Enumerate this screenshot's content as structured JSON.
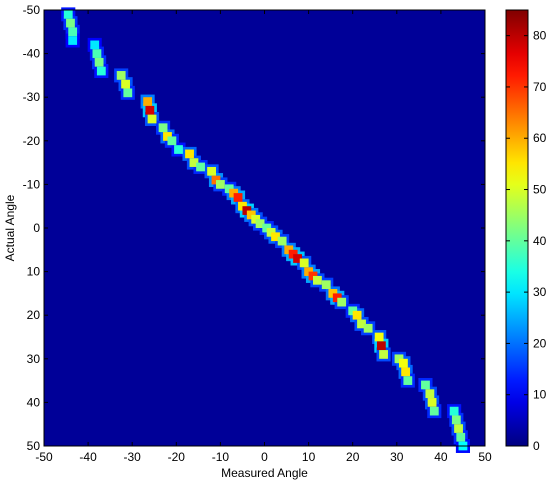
{
  "chart_data": {
    "type": "heatmap",
    "xlabel": "Measured Angle",
    "ylabel": "Actual Angle",
    "xlim": [
      -50,
      50
    ],
    "ylim": [
      -50,
      50
    ],
    "y_direction": "reversed (top = -50, bottom = 50)",
    "x_ticks": [
      -50,
      -40,
      -30,
      -20,
      -10,
      0,
      10,
      20,
      30,
      40,
      50
    ],
    "y_ticks": [
      -50,
      -40,
      -30,
      -20,
      -10,
      0,
      10,
      20,
      30,
      40,
      50
    ],
    "colorbar": {
      "colormap": "jet",
      "min": 0,
      "max": 85,
      "ticks": [
        0,
        10,
        20,
        30,
        40,
        50,
        60,
        70,
        80
      ]
    },
    "background_value": 2,
    "hotspots": [
      {
        "x": -44.5,
        "y": -49,
        "value": 35
      },
      {
        "x": -44,
        "y": -47,
        "value": 42
      },
      {
        "x": -43.5,
        "y": -45,
        "value": 38
      },
      {
        "x": -43.5,
        "y": -43,
        "value": 30
      },
      {
        "x": -38.5,
        "y": -42,
        "value": 30
      },
      {
        "x": -38,
        "y": -40,
        "value": 38
      },
      {
        "x": -37.5,
        "y": -38,
        "value": 42
      },
      {
        "x": -37,
        "y": -36,
        "value": 35
      },
      {
        "x": -32.5,
        "y": -35,
        "value": 45
      },
      {
        "x": -31.5,
        "y": -33,
        "value": 50
      },
      {
        "x": -31,
        "y": -31,
        "value": 40
      },
      {
        "x": -26.5,
        "y": -29,
        "value": 60
      },
      {
        "x": -26,
        "y": -27,
        "value": 78
      },
      {
        "x": -25.5,
        "y": -25,
        "value": 50
      },
      {
        "x": -23,
        "y": -23,
        "value": 42
      },
      {
        "x": -22,
        "y": -21,
        "value": 55
      },
      {
        "x": -21,
        "y": -20,
        "value": 40
      },
      {
        "x": -19.5,
        "y": -18,
        "value": 35
      },
      {
        "x": -17,
        "y": -17,
        "value": 55
      },
      {
        "x": -16,
        "y": -15,
        "value": 48
      },
      {
        "x": -14.5,
        "y": -14,
        "value": 40
      },
      {
        "x": -12,
        "y": -13,
        "value": 50
      },
      {
        "x": -11,
        "y": -11,
        "value": 65
      },
      {
        "x": -10,
        "y": -10,
        "value": 45
      },
      {
        "x": -8,
        "y": -9,
        "value": 40
      },
      {
        "x": -7,
        "y": -8,
        "value": 60
      },
      {
        "x": -6,
        "y": -7,
        "value": 72
      },
      {
        "x": -5,
        "y": -5,
        "value": 55
      },
      {
        "x": -4,
        "y": -4,
        "value": 80
      },
      {
        "x": -3,
        "y": -3,
        "value": 58
      },
      {
        "x": -2,
        "y": -2,
        "value": 50
      },
      {
        "x": -1,
        "y": -1,
        "value": 45
      },
      {
        "x": 0.5,
        "y": 0,
        "value": 40
      },
      {
        "x": 1.5,
        "y": 1,
        "value": 48
      },
      {
        "x": 2.5,
        "y": 2,
        "value": 55
      },
      {
        "x": 4,
        "y": 3,
        "value": 45
      },
      {
        "x": 5.5,
        "y": 5,
        "value": 60
      },
      {
        "x": 6.5,
        "y": 6,
        "value": 72
      },
      {
        "x": 7.5,
        "y": 7,
        "value": 78
      },
      {
        "x": 9,
        "y": 8,
        "value": 50
      },
      {
        "x": 10,
        "y": 10,
        "value": 60
      },
      {
        "x": 11,
        "y": 11,
        "value": 70
      },
      {
        "x": 12,
        "y": 12,
        "value": 48
      },
      {
        "x": 14,
        "y": 13,
        "value": 45
      },
      {
        "x": 15.5,
        "y": 15,
        "value": 58
      },
      {
        "x": 16.5,
        "y": 16,
        "value": 72
      },
      {
        "x": 17.5,
        "y": 17,
        "value": 45
      },
      {
        "x": 20,
        "y": 19,
        "value": 40
      },
      {
        "x": 21,
        "y": 20,
        "value": 55
      },
      {
        "x": 22,
        "y": 22,
        "value": 48
      },
      {
        "x": 23.5,
        "y": 23,
        "value": 45
      },
      {
        "x": 26,
        "y": 25,
        "value": 52
      },
      {
        "x": 26.5,
        "y": 27,
        "value": 80
      },
      {
        "x": 27,
        "y": 29,
        "value": 48
      },
      {
        "x": 30.5,
        "y": 30,
        "value": 45
      },
      {
        "x": 31.5,
        "y": 31,
        "value": 52
      },
      {
        "x": 32,
        "y": 33,
        "value": 55
      },
      {
        "x": 32.5,
        "y": 35,
        "value": 40
      },
      {
        "x": 36.5,
        "y": 36,
        "value": 40
      },
      {
        "x": 37.5,
        "y": 38,
        "value": 48
      },
      {
        "x": 38,
        "y": 40,
        "value": 50
      },
      {
        "x": 38.5,
        "y": 42,
        "value": 40
      },
      {
        "x": 43,
        "y": 42,
        "value": 35
      },
      {
        "x": 43.5,
        "y": 44,
        "value": 42
      },
      {
        "x": 44,
        "y": 46,
        "value": 48
      },
      {
        "x": 44.5,
        "y": 48,
        "value": 40
      },
      {
        "x": 45,
        "y": 50,
        "value": 32
      }
    ]
  }
}
